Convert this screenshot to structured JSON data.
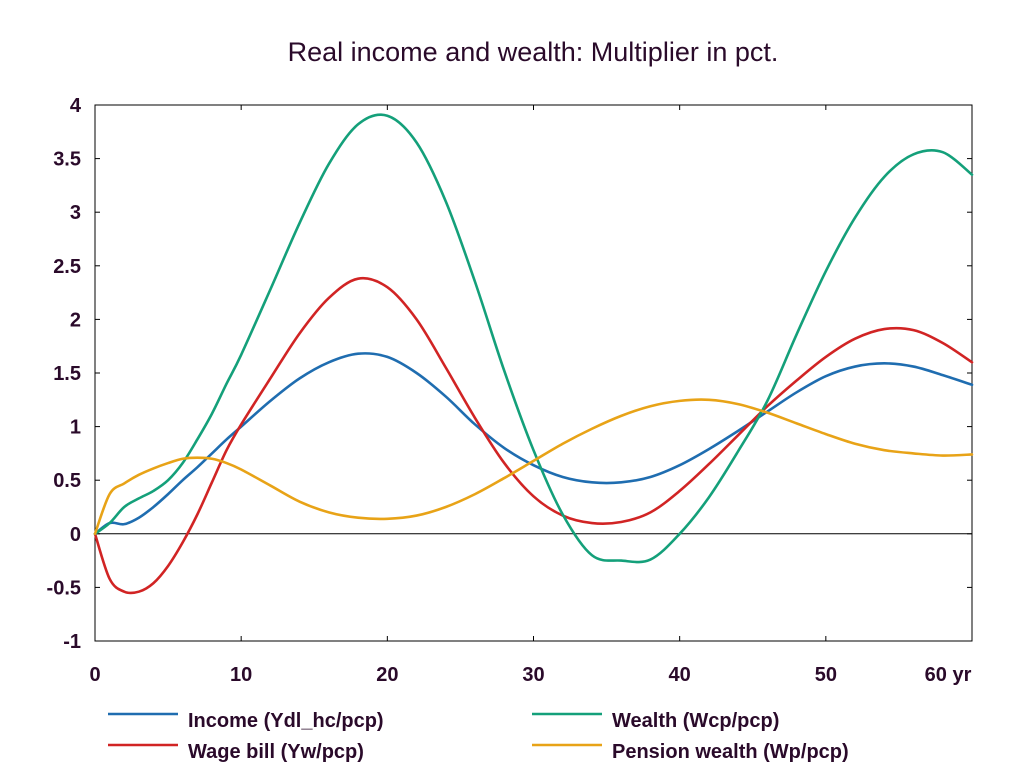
{
  "chart_data": {
    "type": "line",
    "title": "Real income and wealth: Multiplier in pct.",
    "x_unit_label": "yr",
    "xlim": [
      0,
      60
    ],
    "ylim": [
      -1,
      4
    ],
    "xticks": [
      0,
      10,
      20,
      30,
      40,
      50,
      60
    ],
    "xtick_labels": [
      "0",
      "10",
      "20",
      "30",
      "40",
      "50",
      "60 yr"
    ],
    "yticks": [
      -1,
      -0.5,
      0,
      0.5,
      1,
      1.5,
      2,
      2.5,
      3,
      3.5,
      4
    ],
    "ytick_labels": [
      "-1",
      "-0.5",
      "0",
      "0.5",
      "1",
      "1.5",
      "2",
      "2.5",
      "3",
      "3.5",
      "4"
    ],
    "zero_line": true,
    "grid": false,
    "legend_position": "bottom",
    "series": [
      {
        "name": "Income (Ydl_hc/pcp)",
        "color": "#1f6db0",
        "x": [
          0,
          1,
          2,
          3,
          4,
          5,
          6,
          7,
          8,
          9,
          10,
          12,
          14,
          16,
          18,
          20,
          22,
          24,
          26,
          28,
          30,
          32,
          34,
          36,
          38,
          40,
          42,
          44,
          46,
          48,
          50,
          52,
          54,
          56,
          58,
          60
        ],
        "y": [
          0,
          0.1,
          0.09,
          0.15,
          0.25,
          0.37,
          0.5,
          0.62,
          0.75,
          0.88,
          1.0,
          1.24,
          1.45,
          1.6,
          1.68,
          1.65,
          1.5,
          1.28,
          1.02,
          0.8,
          0.64,
          0.53,
          0.48,
          0.48,
          0.53,
          0.64,
          0.79,
          0.96,
          1.14,
          1.32,
          1.47,
          1.56,
          1.59,
          1.56,
          1.48,
          1.39
        ]
      },
      {
        "name": "Wage bill (Yw/pcp)",
        "color": "#d12424",
        "x": [
          0,
          1,
          2,
          3,
          4,
          5,
          6,
          7,
          8,
          9,
          10,
          12,
          14,
          16,
          18,
          20,
          22,
          24,
          26,
          28,
          30,
          32,
          34,
          36,
          38,
          40,
          42,
          44,
          46,
          48,
          50,
          52,
          54,
          56,
          58,
          60
        ],
        "y": [
          0,
          -0.42,
          -0.54,
          -0.54,
          -0.46,
          -0.3,
          -0.08,
          0.18,
          0.48,
          0.78,
          1.02,
          1.45,
          1.87,
          2.2,
          2.38,
          2.3,
          2.0,
          1.55,
          1.08,
          0.66,
          0.35,
          0.17,
          0.1,
          0.11,
          0.2,
          0.4,
          0.65,
          0.92,
          1.19,
          1.43,
          1.65,
          1.82,
          1.91,
          1.9,
          1.78,
          1.6
        ]
      },
      {
        "name": "Wealth (Wcp/pcp)",
        "color": "#14a07a",
        "x": [
          0,
          1,
          2,
          3,
          4,
          5,
          6,
          7,
          8,
          9,
          10,
          12,
          14,
          16,
          18,
          20,
          22,
          24,
          26,
          28,
          30,
          32,
          34,
          36,
          38,
          40,
          42,
          44,
          46,
          48,
          50,
          52,
          54,
          56,
          58,
          60
        ],
        "y": [
          0,
          0.1,
          0.25,
          0.33,
          0.4,
          0.5,
          0.66,
          0.88,
          1.12,
          1.4,
          1.67,
          2.28,
          2.9,
          3.45,
          3.82,
          3.9,
          3.65,
          3.1,
          2.35,
          1.52,
          0.78,
          0.18,
          -0.2,
          -0.25,
          -0.24,
          0.0,
          0.34,
          0.77,
          1.24,
          1.86,
          2.45,
          2.95,
          3.33,
          3.54,
          3.56,
          3.35
        ]
      },
      {
        "name": "Pension wealth (Wp/pcp)",
        "color": "#e8a317",
        "x": [
          0,
          1,
          2,
          3,
          4,
          5,
          6,
          7,
          8,
          9,
          10,
          12,
          14,
          16,
          18,
          20,
          22,
          24,
          26,
          28,
          30,
          32,
          34,
          36,
          38,
          40,
          42,
          44,
          46,
          48,
          50,
          52,
          54,
          56,
          58,
          60
        ],
        "y": [
          0,
          0.37,
          0.47,
          0.55,
          0.61,
          0.66,
          0.7,
          0.71,
          0.7,
          0.66,
          0.6,
          0.45,
          0.3,
          0.2,
          0.15,
          0.14,
          0.17,
          0.25,
          0.37,
          0.52,
          0.68,
          0.84,
          0.98,
          1.1,
          1.19,
          1.24,
          1.25,
          1.21,
          1.13,
          1.03,
          0.93,
          0.84,
          0.78,
          0.75,
          0.73,
          0.74
        ]
      }
    ]
  }
}
